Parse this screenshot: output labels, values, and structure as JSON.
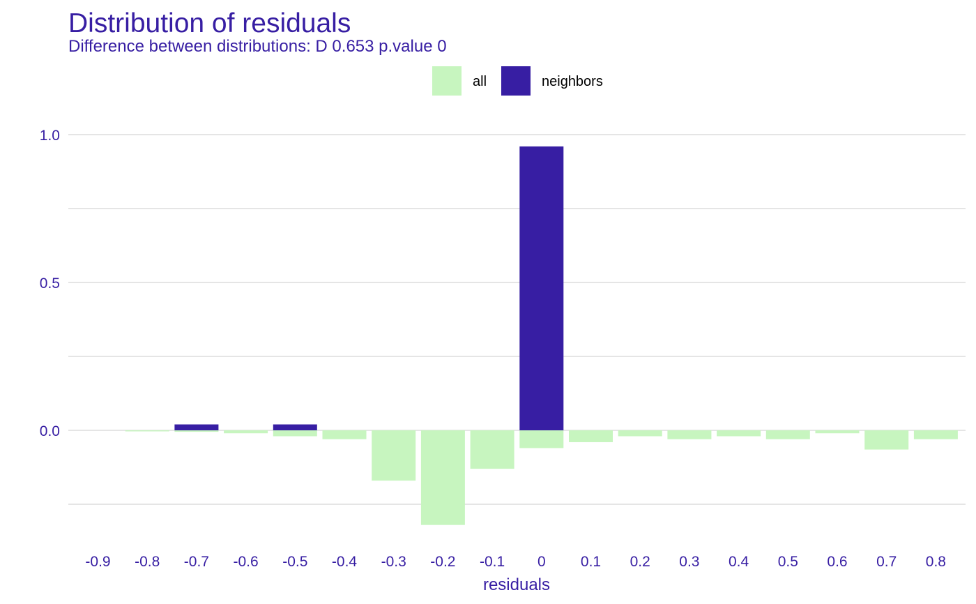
{
  "chart_data": {
    "type": "bar",
    "title": "Distribution of residuals",
    "subtitle": "Difference between distributions: D 0.653 p.value 0",
    "xlabel": "residuals",
    "ylabel": "",
    "categories": [
      "-0.9",
      "-0.8",
      "-0.7",
      "-0.6",
      "-0.5",
      "-0.4",
      "-0.3",
      "-0.2",
      "-0.1",
      "0",
      "0.1",
      "0.2",
      "0.3",
      "0.4",
      "0.5",
      "0.6",
      "0.7",
      "0.8"
    ],
    "series": [
      {
        "name": "all",
        "color": "#c7f5bf",
        "direction": "down",
        "values": [
          0,
          0.002,
          0.005,
          0.01,
          0.02,
          0.03,
          0.17,
          0.32,
          0.13,
          0.06,
          0.04,
          0.02,
          0.03,
          0.02,
          0.03,
          0.01,
          0.065,
          0.03
        ]
      },
      {
        "name": "neighbors",
        "color": "#371ea3",
        "direction": "up",
        "values": [
          0,
          0,
          0.02,
          0,
          0.02,
          0,
          0,
          0,
          0,
          0.96,
          0,
          0,
          0,
          0,
          0,
          0,
          0,
          0
        ]
      }
    ],
    "yticks": [
      "0.0",
      "0.5",
      "1.0"
    ],
    "ylim": [
      -0.34,
      1.04
    ],
    "grid": true,
    "legend_position": "top"
  }
}
